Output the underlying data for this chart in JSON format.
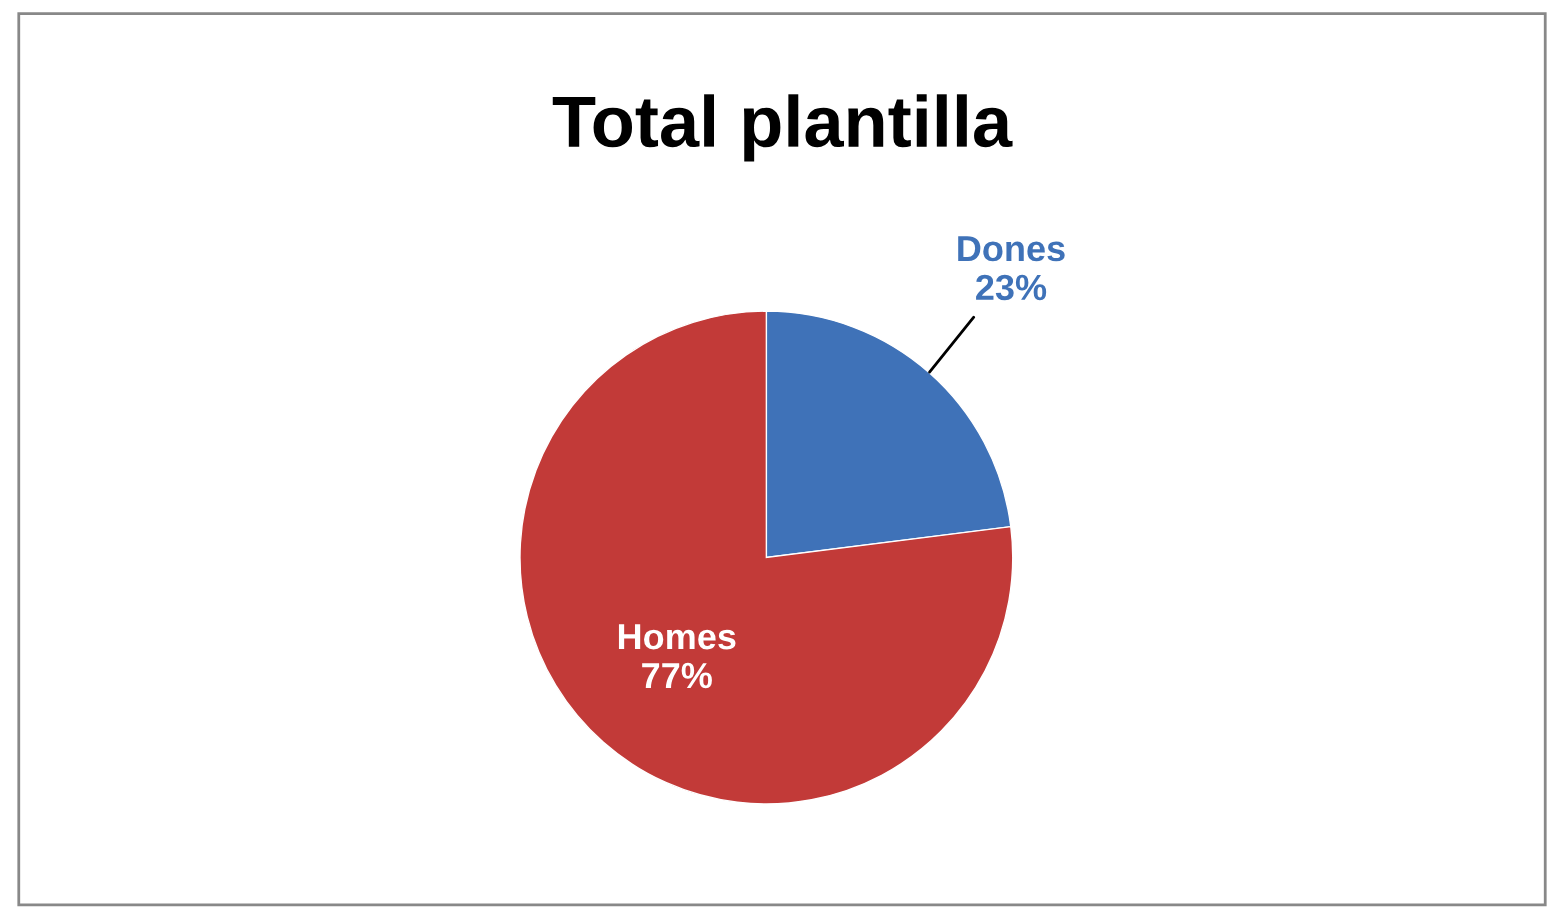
{
  "chart_data": {
    "type": "pie",
    "title": "Total plantilla",
    "categories": [
      "Dones",
      "Homes"
    ],
    "values": [
      23,
      77
    ],
    "value_labels": [
      "23%",
      "77%"
    ],
    "colors": [
      "#3f72b8",
      "#c23a38"
    ],
    "legend": false
  }
}
